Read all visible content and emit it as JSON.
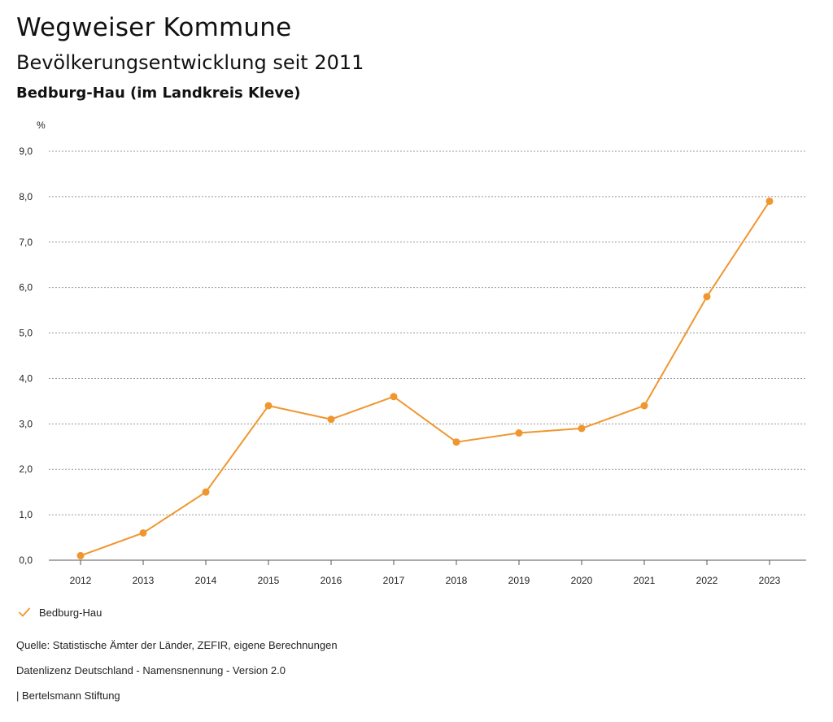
{
  "header": {
    "title": "Wegweiser Kommune",
    "subtitle": "Bevölkerungsentwicklung seit 2011",
    "region": "Bedburg-Hau (im Landkreis Kleve)"
  },
  "chart_data": {
    "type": "line",
    "ylabel": "%",
    "xlabel": "",
    "ylim": [
      0,
      9
    ],
    "yticks": [
      0,
      1,
      2,
      3,
      4,
      5,
      6,
      7,
      8,
      9
    ],
    "ytick_labels": [
      "0,0",
      "1,0",
      "2,0",
      "3,0",
      "4,0",
      "5,0",
      "6,0",
      "7,0",
      "8,0",
      "9,0"
    ],
    "categories": [
      "2012",
      "2013",
      "2014",
      "2015",
      "2016",
      "2017",
      "2018",
      "2019",
      "2020",
      "2021",
      "2022",
      "2023"
    ],
    "series": [
      {
        "name": "Bedburg-Hau",
        "color": "#f0962f",
        "values": [
          0.1,
          0.6,
          1.5,
          3.4,
          3.1,
          3.6,
          2.6,
          2.8,
          2.9,
          3.4,
          5.8,
          7.9
        ]
      }
    ],
    "grid": true,
    "legend": "bottom-left"
  },
  "legend": {
    "label": "Bedburg-Hau",
    "icon": "check-icon"
  },
  "footer": {
    "source": "Quelle: Statistische Ämter der Länder, ZEFIR, eigene Berechnungen",
    "license": "Datenlizenz Deutschland - Namensnennung - Version 2.0",
    "publisher": "| Bertelsmann Stiftung"
  }
}
